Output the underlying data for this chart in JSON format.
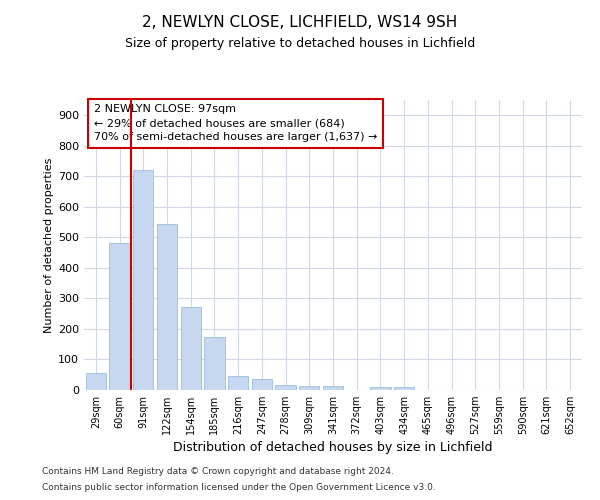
{
  "title_line1": "2, NEWLYN CLOSE, LICHFIELD, WS14 9SH",
  "title_line2": "Size of property relative to detached houses in Lichfield",
  "xlabel": "Distribution of detached houses by size in Lichfield",
  "ylabel": "Number of detached properties",
  "categories": [
    "29sqm",
    "60sqm",
    "91sqm",
    "122sqm",
    "154sqm",
    "185sqm",
    "216sqm",
    "247sqm",
    "278sqm",
    "309sqm",
    "341sqm",
    "372sqm",
    "403sqm",
    "434sqm",
    "465sqm",
    "496sqm",
    "527sqm",
    "559sqm",
    "590sqm",
    "621sqm",
    "652sqm"
  ],
  "values": [
    57,
    481,
    720,
    543,
    272,
    172,
    47,
    35,
    18,
    14,
    14,
    0,
    9,
    9,
    0,
    0,
    0,
    0,
    0,
    0,
    0
  ],
  "bar_color": "#c5d8f0",
  "bar_edge_color": "#8ab4d8",
  "vline_color": "#cc0000",
  "vline_position": 1.5,
  "annotation_text": "2 NEWLYN CLOSE: 97sqm\n← 29% of detached houses are smaller (684)\n70% of semi-detached houses are larger (1,637) →",
  "annotation_box_color": "#ffffff",
  "annotation_box_edge_color": "#cc0000",
  "ylim": [
    0,
    950
  ],
  "yticks": [
    0,
    100,
    200,
    300,
    400,
    500,
    600,
    700,
    800,
    900
  ],
  "fig_bg_color": "#ffffff",
  "plot_bg_color": "#ffffff",
  "grid_color": "#d0d8e8",
  "footer_line1": "Contains HM Land Registry data © Crown copyright and database right 2024.",
  "footer_line2": "Contains public sector information licensed under the Open Government Licence v3.0.",
  "title1_fontsize": 11,
  "title2_fontsize": 9,
  "xlabel_fontsize": 9,
  "ylabel_fontsize": 8,
  "tick_fontsize": 8,
  "ann_fontsize": 8,
  "footer_fontsize": 6.5
}
